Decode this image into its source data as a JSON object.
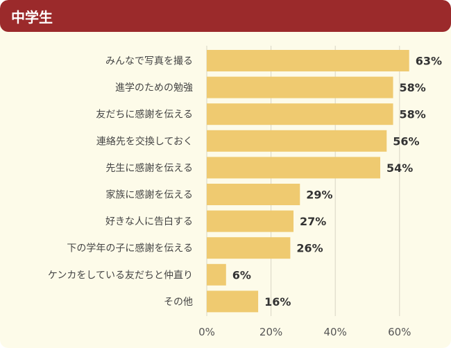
{
  "header": {
    "title": "中学生"
  },
  "colors": {
    "header_bg": "#9b2a2b",
    "card_bg": "#fdfbe9",
    "bar": "#efca70",
    "grid": "#d8d4c4"
  },
  "chart_data": {
    "type": "bar",
    "orientation": "horizontal",
    "categories": [
      "みんなで写真を撮る",
      "進学のための勉強",
      "友だちに感謝を伝える",
      "連絡先を交換しておく",
      "先生に感謝を伝える",
      "家族に感謝を伝える",
      "好きな人に告白する",
      "下の学年の子に感謝を伝える",
      "ケンカをしている友だちと仲直り",
      "その他"
    ],
    "values": [
      63,
      58,
      58,
      56,
      54,
      29,
      27,
      26,
      6,
      16
    ],
    "value_labels": [
      "63%",
      "58%",
      "58%",
      "56%",
      "54%",
      "29%",
      "27%",
      "26%",
      "6%",
      "16%"
    ],
    "xlim": [
      0,
      70
    ],
    "xticks": [
      0,
      20,
      40,
      60
    ],
    "xtick_labels": [
      "0%",
      "20%",
      "40%",
      "60%"
    ],
    "grid": true
  }
}
